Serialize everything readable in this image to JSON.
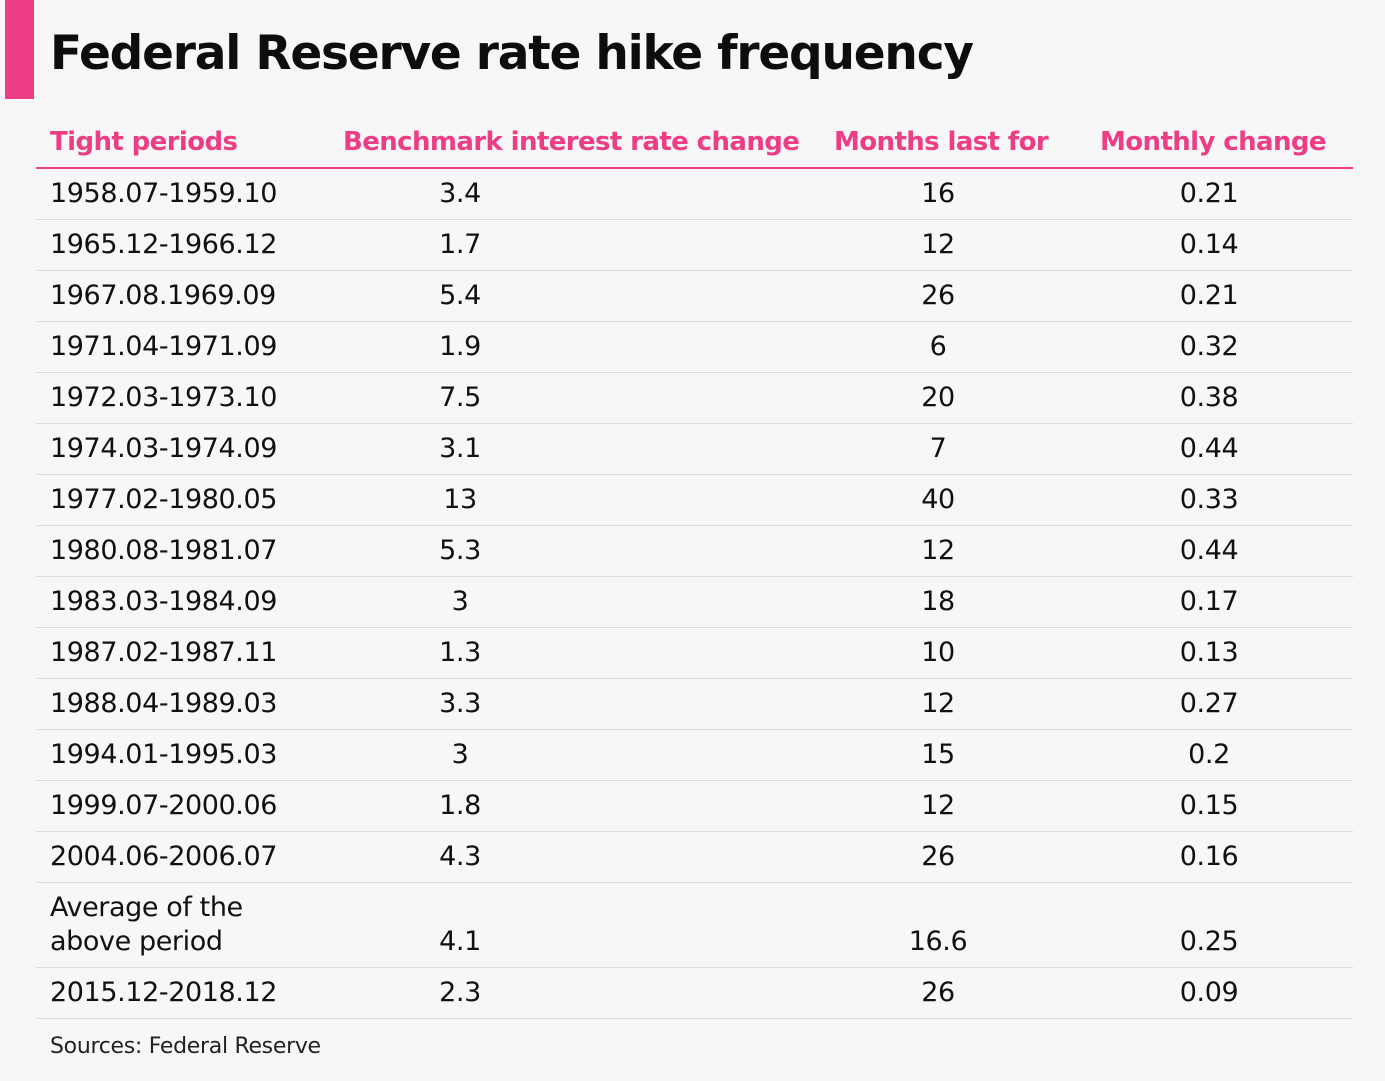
{
  "colors": {
    "accent": "#ec3d85",
    "text": "#111111",
    "background": "#f7f7f7",
    "row_divider": "#dcdcdc"
  },
  "title": "Federal Reserve rate hike frequency",
  "source": "Sources: Federal Reserve",
  "chart_data": {
    "type": "table",
    "title": "Federal Reserve rate hike frequency",
    "columns": [
      "Tight periods",
      "Benchmark interest rate change",
      "Months last for",
      "Monthly change"
    ],
    "rows": [
      [
        "1958.07-1959.10",
        "3.4",
        "16",
        "0.21"
      ],
      [
        "1965.12-1966.12",
        "1.7",
        "12",
        "0.14"
      ],
      [
        "1967.08.1969.09",
        "5.4",
        "26",
        "0.21"
      ],
      [
        "1971.04-1971.09",
        "1.9",
        "6",
        "0.32"
      ],
      [
        "1972.03-1973.10",
        "7.5",
        "20",
        "0.38"
      ],
      [
        "1974.03-1974.09",
        "3.1",
        "7",
        "0.44"
      ],
      [
        "1977.02-1980.05",
        "13",
        "40",
        "0.33"
      ],
      [
        "1980.08-1981.07",
        "5.3",
        "12",
        "0.44"
      ],
      [
        "1983.03-1984.09",
        "3",
        "18",
        "0.17"
      ],
      [
        "1987.02-1987.11",
        "1.3",
        "10",
        "0.13"
      ],
      [
        "1988.04-1989.03",
        "3.3",
        "12",
        "0.27"
      ],
      [
        "1994.01-1995.03",
        "3",
        "15",
        "0.2"
      ],
      [
        "1999.07-2000.06",
        "1.8",
        "12",
        "0.15"
      ],
      [
        "2004.06-2006.07",
        "4.3",
        "26",
        "0.16"
      ],
      [
        "Average of the above period",
        "4.1",
        "16.6",
        "0.25"
      ],
      [
        "2015.12-2018.12",
        "2.3",
        "26",
        "0.09"
      ]
    ],
    "source": "Sources: Federal Reserve"
  }
}
